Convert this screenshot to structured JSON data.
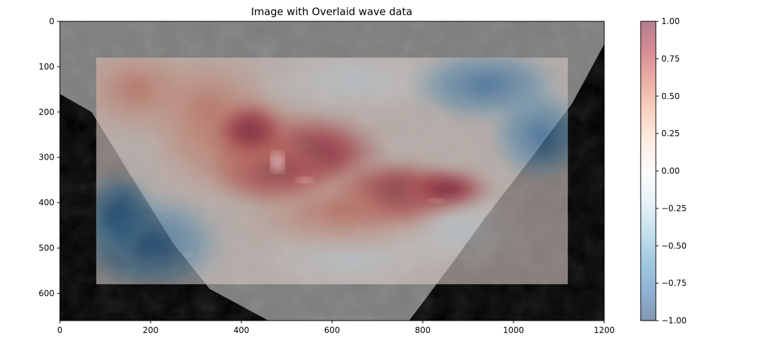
{
  "chart_data": {
    "type": "heatmap",
    "title": "Image with Overlaid wave data",
    "xlim": [
      0,
      1200
    ],
    "ylim": [
      660,
      0
    ],
    "x_ticks": [
      0,
      200,
      400,
      600,
      800,
      1000,
      1200
    ],
    "y_ticks": [
      0,
      100,
      200,
      300,
      400,
      500,
      600
    ],
    "background_image": {
      "grayscale_region_polygon": [
        [
          0,
          0
        ],
        [
          1200,
          0
        ],
        [
          1200,
          50
        ],
        [
          1130,
          180
        ],
        [
          1040,
          300
        ],
        [
          940,
          430
        ],
        [
          860,
          540
        ],
        [
          800,
          620
        ],
        [
          770,
          660
        ],
        [
          460,
          660
        ],
        [
          330,
          590
        ],
        [
          250,
          490
        ],
        [
          150,
          330
        ],
        [
          70,
          200
        ],
        [
          0,
          160
        ]
      ],
      "masked_color": "#000000"
    },
    "overlay": {
      "extent_x": [
        80,
        1120
      ],
      "extent_y": [
        80,
        580
      ],
      "alpha": 0.5,
      "colormap": "RdBu_r",
      "features": [
        {
          "label": "max",
          "x": 560,
          "y": 300,
          "value": 1.0
        },
        {
          "label": "max",
          "x": 800,
          "y": 380,
          "value": 0.95
        },
        {
          "label": "min",
          "x": 940,
          "y": 140,
          "value": -0.7
        },
        {
          "label": "min",
          "x": 220,
          "y": 500,
          "value": -0.85
        }
      ]
    },
    "colorbar": {
      "range": [
        -1.0,
        1.0
      ],
      "ticks": [
        "1.00",
        "0.75",
        "0.50",
        "0.25",
        "0.00",
        "−0.25",
        "−0.50",
        "−0.75",
        "−1.00"
      ],
      "tick_values": [
        1.0,
        0.75,
        0.5,
        0.25,
        0.0,
        -0.25,
        -0.5,
        -0.75,
        -1.0
      ],
      "colors": [
        "#67001f",
        "#b2182b",
        "#d6604d",
        "#f4a582",
        "#fddbc7",
        "#f7f7f7",
        "#d1e5f0",
        "#92c5de",
        "#4393c3",
        "#2166ac",
        "#053061"
      ]
    }
  }
}
